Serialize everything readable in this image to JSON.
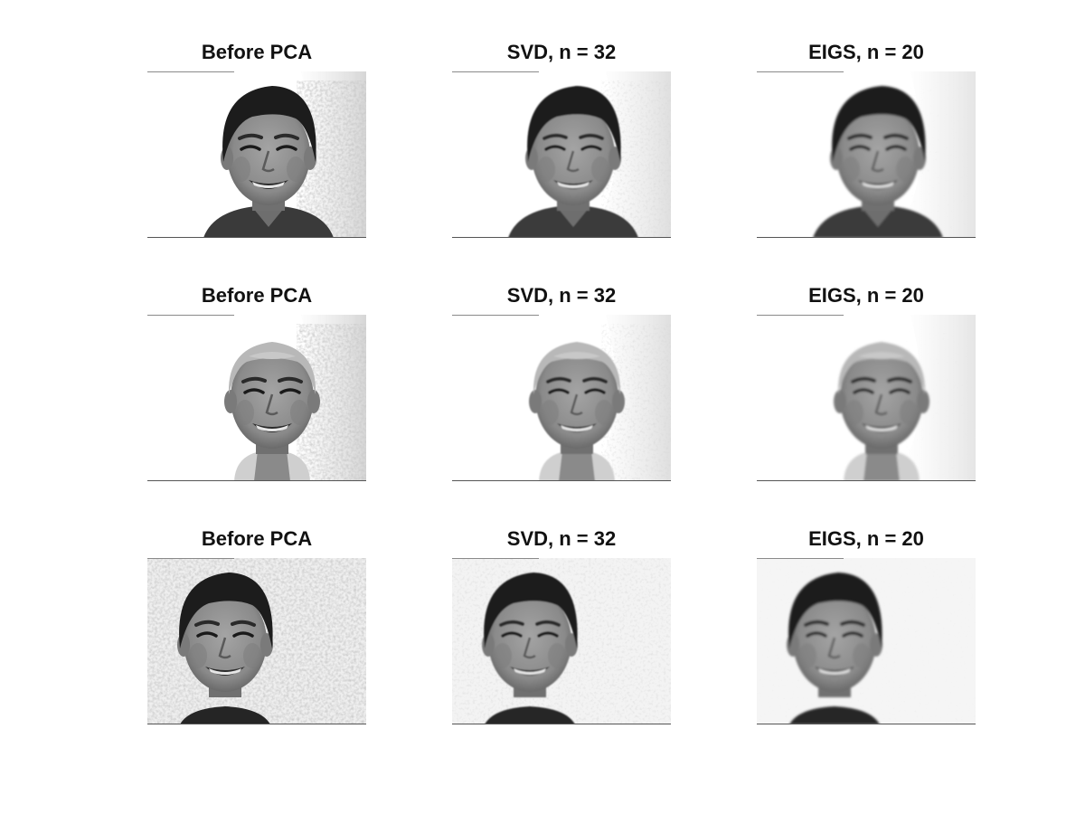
{
  "figure": {
    "rows": [
      {
        "subject": "subject-1",
        "panels": [
          {
            "title": "Before PCA",
            "variant": "original"
          },
          {
            "title": "SVD, n = 32",
            "variant": "svd"
          },
          {
            "title": "EIGS, n = 20",
            "variant": "eigs"
          }
        ]
      },
      {
        "subject": "subject-2",
        "panels": [
          {
            "title": "Before PCA",
            "variant": "original"
          },
          {
            "title": "SVD, n = 32",
            "variant": "svd"
          },
          {
            "title": "EIGS, n = 20",
            "variant": "eigs"
          }
        ]
      },
      {
        "subject": "subject-3",
        "panels": [
          {
            "title": "Before PCA",
            "variant": "original"
          },
          {
            "title": "SVD, n = 32",
            "variant": "svd"
          },
          {
            "title": "EIGS, n = 20",
            "variant": "eigs"
          }
        ]
      }
    ]
  },
  "colors": {
    "background": "#ffffff",
    "hair": "#1c1c1c",
    "skin": "#8e8e8e",
    "shirt": "#2e2e2e",
    "wall": "#f2f2f2"
  }
}
